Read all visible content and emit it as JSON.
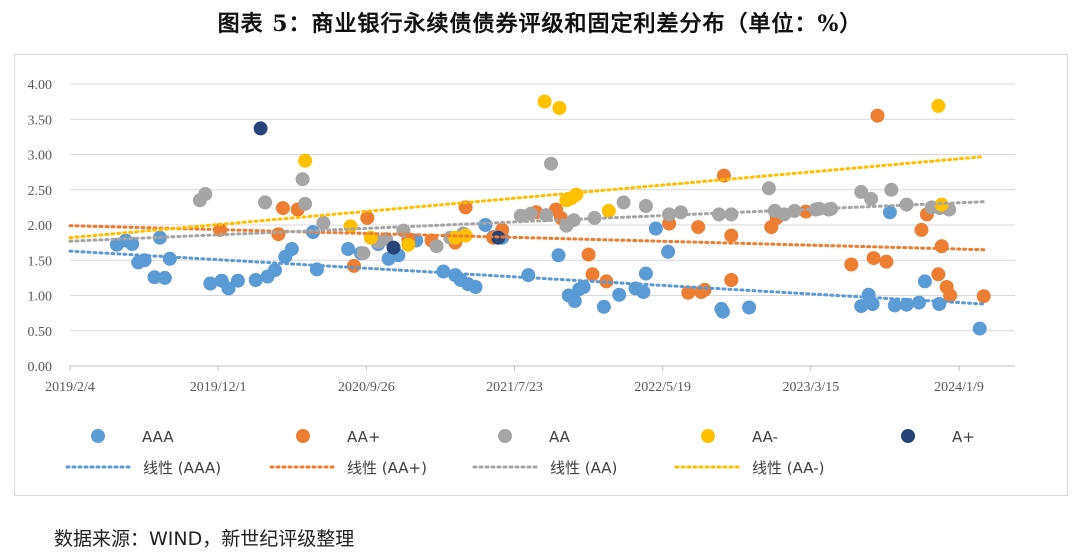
{
  "title": "图表 5：商业银行永续债债券评级和固定利差分布（单位：%）",
  "source": "数据来源：WIND，新世纪评级整理",
  "chart_data": {
    "type": "scatter",
    "xlabel": "",
    "ylabel": "",
    "x_range": [
      "2019-02-04",
      "2024-03-15"
    ],
    "ylim": [
      0,
      4
    ],
    "x_ticks": [
      "2019/2/4",
      "2019/12/1",
      "2020/9/26",
      "2021/7/23",
      "2022/5/19",
      "2023/3/15",
      "2024/1/9"
    ],
    "y_ticks": [
      "0.00",
      "0.50",
      "1.00",
      "1.50",
      "2.00",
      "2.50",
      "3.00",
      "3.50",
      "4.00"
    ],
    "grid": "horizontal",
    "legend_position": "bottom",
    "series": [
      {
        "name": "AAA",
        "color": "#5B9BD5",
        "points": [
          [
            "2019-05-10",
            1.72
          ],
          [
            "2019-05-28",
            1.78
          ],
          [
            "2019-06-10",
            1.73
          ],
          [
            "2019-06-22",
            1.47
          ],
          [
            "2019-07-05",
            1.5
          ],
          [
            "2019-07-25",
            1.26
          ],
          [
            "2019-08-05",
            1.82
          ],
          [
            "2019-08-15",
            1.25
          ],
          [
            "2019-08-25",
            1.52
          ],
          [
            "2019-11-15",
            1.17
          ],
          [
            "2019-12-08",
            1.21
          ],
          [
            "2019-12-22",
            1.1
          ],
          [
            "2020-01-10",
            1.21
          ],
          [
            "2020-02-15",
            1.22
          ],
          [
            "2020-03-10",
            1.27
          ],
          [
            "2020-03-25",
            1.36
          ],
          [
            "2020-04-15",
            1.55
          ],
          [
            "2020-04-28",
            1.66
          ],
          [
            "2020-06-10",
            1.9
          ],
          [
            "2020-06-18",
            1.37
          ],
          [
            "2020-08-20",
            1.66
          ],
          [
            "2020-09-15",
            1.6
          ],
          [
            "2020-10-20",
            1.73
          ],
          [
            "2020-11-10",
            1.52
          ],
          [
            "2020-11-30",
            1.57
          ],
          [
            "2021-01-05",
            1.78
          ],
          [
            "2021-03-01",
            1.34
          ],
          [
            "2021-03-25",
            1.29
          ],
          [
            "2021-04-05",
            1.22
          ],
          [
            "2021-04-20",
            1.16
          ],
          [
            "2021-05-05",
            1.12
          ],
          [
            "2021-05-25",
            2.0
          ],
          [
            "2021-06-10",
            1.83
          ],
          [
            "2021-06-28",
            1.82
          ],
          [
            "2021-08-20",
            1.29
          ],
          [
            "2021-10-20",
            1.57
          ],
          [
            "2021-11-10",
            1.0
          ],
          [
            "2021-11-22",
            0.92
          ],
          [
            "2021-12-01",
            1.09
          ],
          [
            "2021-12-10",
            1.12
          ],
          [
            "2022-01-20",
            0.84
          ],
          [
            "2022-02-20",
            1.01
          ],
          [
            "2022-03-25",
            1.1
          ],
          [
            "2022-04-10",
            1.05
          ],
          [
            "2022-04-15",
            1.31
          ],
          [
            "2022-05-05",
            1.95
          ],
          [
            "2022-05-30",
            1.62
          ],
          [
            "2022-09-15",
            0.81
          ],
          [
            "2022-09-18",
            0.77
          ],
          [
            "2022-11-10",
            0.83
          ],
          [
            "2023-06-25",
            0.85
          ],
          [
            "2023-07-10",
            1.01
          ],
          [
            "2023-07-18",
            0.88
          ],
          [
            "2023-08-22",
            2.18
          ],
          [
            "2023-09-01",
            0.86
          ],
          [
            "2023-09-25",
            0.87
          ],
          [
            "2023-10-20",
            0.9
          ],
          [
            "2023-11-01",
            1.2
          ],
          [
            "2023-11-30",
            0.88
          ],
          [
            "2024-02-20",
            0.53
          ]
        ]
      },
      {
        "name": "AA+",
        "color": "#ED7D31",
        "points": [
          [
            "2019-12-05",
            1.93
          ],
          [
            "2020-04-01",
            1.87
          ],
          [
            "2020-04-10",
            2.24
          ],
          [
            "2020-05-10",
            2.22
          ],
          [
            "2020-09-01",
            1.42
          ],
          [
            "2020-09-28",
            2.1
          ],
          [
            "2020-12-20",
            1.8
          ],
          [
            "2021-02-05",
            1.78
          ],
          [
            "2021-03-25",
            1.75
          ],
          [
            "2021-04-15",
            2.25
          ],
          [
            "2021-06-10",
            1.82
          ],
          [
            "2021-06-28",
            1.93
          ],
          [
            "2021-09-05",
            2.18
          ],
          [
            "2021-10-15",
            2.22
          ],
          [
            "2021-10-25",
            2.1
          ],
          [
            "2021-12-20",
            1.58
          ],
          [
            "2021-12-28",
            1.3
          ],
          [
            "2022-01-25",
            1.2
          ],
          [
            "2022-06-01",
            2.02
          ],
          [
            "2022-07-10",
            1.04
          ],
          [
            "2022-07-30",
            1.97
          ],
          [
            "2022-08-05",
            1.05
          ],
          [
            "2022-08-12",
            1.08
          ],
          [
            "2022-09-20",
            2.7
          ],
          [
            "2022-10-05",
            1.85
          ],
          [
            "2022-10-05",
            1.22
          ],
          [
            "2022-12-25",
            1.97
          ],
          [
            "2023-01-05",
            2.1
          ],
          [
            "2023-03-05",
            2.19
          ],
          [
            "2023-06-05",
            1.44
          ],
          [
            "2023-07-20",
            1.53
          ],
          [
            "2023-07-28",
            3.55
          ],
          [
            "2023-08-15",
            1.48
          ],
          [
            "2023-10-25",
            1.93
          ],
          [
            "2023-11-05",
            2.15
          ],
          [
            "2023-11-28",
            1.3
          ],
          [
            "2023-12-05",
            1.7
          ],
          [
            "2023-12-15",
            1.12
          ],
          [
            "2023-12-22",
            1.0
          ],
          [
            "2024-02-28",
            0.99
          ]
        ]
      },
      {
        "name": "AA",
        "color": "#A5A5A5",
        "points": [
          [
            "2019-10-25",
            2.35
          ],
          [
            "2019-11-05",
            2.44
          ],
          [
            "2020-03-05",
            2.32
          ],
          [
            "2020-05-20",
            2.65
          ],
          [
            "2020-05-25",
            2.3
          ],
          [
            "2020-07-01",
            2.03
          ],
          [
            "2020-09-20",
            1.6
          ],
          [
            "2020-10-20",
            1.76
          ],
          [
            "2020-11-05",
            1.8
          ],
          [
            "2020-12-10",
            1.92
          ],
          [
            "2021-02-15",
            1.7
          ],
          [
            "2021-03-15",
            1.82
          ],
          [
            "2021-04-10",
            1.88
          ],
          [
            "2021-08-05",
            2.13
          ],
          [
            "2021-08-25",
            2.16
          ],
          [
            "2021-09-25",
            2.14
          ],
          [
            "2021-10-05",
            2.87
          ],
          [
            "2021-11-05",
            1.99
          ],
          [
            "2021-11-20",
            2.07
          ],
          [
            "2022-01-01",
            2.1
          ],
          [
            "2022-03-01",
            2.32
          ],
          [
            "2022-04-15",
            2.27
          ],
          [
            "2022-06-01",
            2.15
          ],
          [
            "2022-06-25",
            2.18
          ],
          [
            "2022-09-10",
            2.15
          ],
          [
            "2022-10-05",
            2.15
          ],
          [
            "2022-12-20",
            2.52
          ],
          [
            "2023-01-01",
            2.2
          ],
          [
            "2023-01-20",
            2.15
          ],
          [
            "2023-02-10",
            2.2
          ],
          [
            "2023-03-25",
            2.22
          ],
          [
            "2023-04-01",
            2.23
          ],
          [
            "2023-04-20",
            2.22
          ],
          [
            "2023-04-25",
            2.23
          ],
          [
            "2023-06-25",
            2.47
          ],
          [
            "2023-07-15",
            2.37
          ],
          [
            "2023-08-25",
            2.5
          ],
          [
            "2023-09-25",
            2.29
          ],
          [
            "2023-11-15",
            2.25
          ],
          [
            "2023-12-01",
            2.24
          ],
          [
            "2023-12-20",
            2.22
          ]
        ]
      },
      {
        "name": "AA-",
        "color": "#FFC000",
        "points": [
          [
            "2020-05-25",
            2.91
          ],
          [
            "2020-08-25",
            1.98
          ],
          [
            "2020-10-05",
            1.82
          ],
          [
            "2020-12-20",
            1.72
          ],
          [
            "2021-03-25",
            1.82
          ],
          [
            "2021-04-15",
            1.85
          ],
          [
            "2021-09-22",
            3.75
          ],
          [
            "2021-10-22",
            3.66
          ],
          [
            "2021-11-05",
            2.35
          ],
          [
            "2021-11-15",
            2.38
          ],
          [
            "2021-11-25",
            2.43
          ],
          [
            "2022-01-30",
            2.2
          ],
          [
            "2023-11-28",
            3.69
          ],
          [
            "2023-12-05",
            2.29
          ]
        ]
      },
      {
        "name": "A+",
        "color": "#264478",
        "points": [
          [
            "2020-02-25",
            3.37
          ],
          [
            "2020-11-20",
            1.68
          ],
          [
            "2021-06-20",
            1.82
          ]
        ]
      }
    ],
    "trendlines": [
      {
        "name": "线性 (AAA)",
        "color": "#5B9BD5",
        "start": [
          "2019-02-04",
          1.63
        ],
        "end": [
          "2024-02-28",
          0.88
        ]
      },
      {
        "name": "线性 (AA+)",
        "color": "#ED7D31",
        "start": [
          "2019-02-04",
          1.99
        ],
        "end": [
          "2024-02-28",
          1.65
        ]
      },
      {
        "name": "线性 (AA)",
        "color": "#A5A5A5",
        "start": [
          "2019-02-04",
          1.77
        ],
        "end": [
          "2024-02-28",
          2.33
        ]
      },
      {
        "name": "线性 (AA-)",
        "color": "#FFC000",
        "start": [
          "2019-02-04",
          1.82
        ],
        "end": [
          "2024-02-28",
          2.97
        ]
      }
    ]
  }
}
